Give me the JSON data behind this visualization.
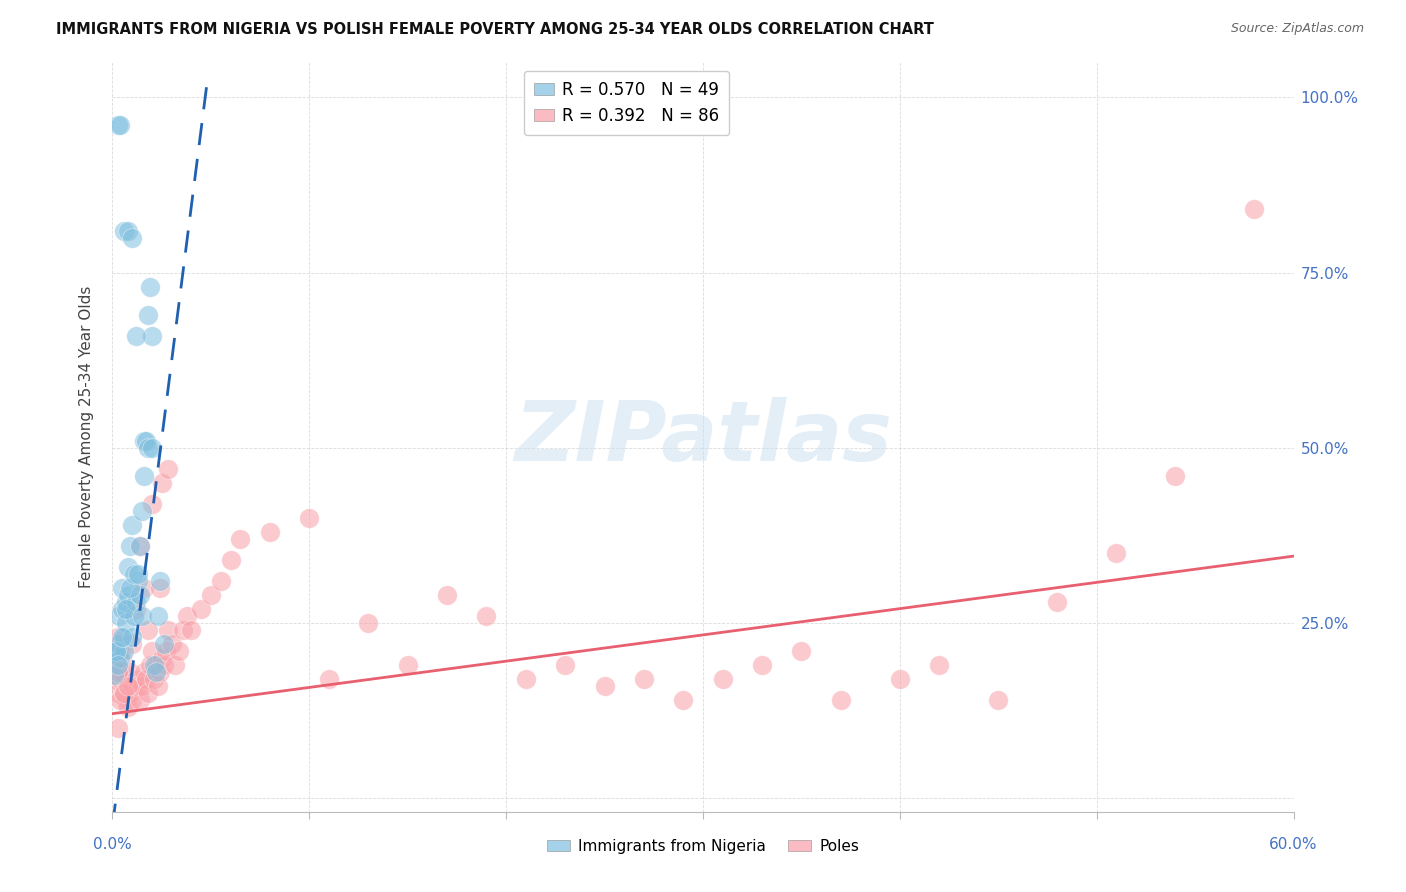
{
  "title": "IMMIGRANTS FROM NIGERIA VS POLISH FEMALE POVERTY AMONG 25-34 YEAR OLDS CORRELATION CHART",
  "source": "Source: ZipAtlas.com",
  "ylabel": "Female Poverty Among 25-34 Year Olds",
  "legend_entry1": "R = 0.570   N = 49",
  "legend_entry2": "R = 0.392   N = 86",
  "legend_label1": "Immigrants from Nigeria",
  "legend_label2": "Poles",
  "color_nigeria": "#7fbfdf",
  "color_poles": "#f9a0a8",
  "trendline_nigeria_color": "#2060b0",
  "trendline_poles_color": "#e86070",
  "watermark": "ZIPatlas",
  "watermark_color": "#c8dff0",
  "nigeria_x": [
    0.001,
    0.002,
    0.003,
    0.0035,
    0.004,
    0.005,
    0.005,
    0.006,
    0.006,
    0.007,
    0.007,
    0.008,
    0.008,
    0.009,
    0.01,
    0.01,
    0.011,
    0.012,
    0.013,
    0.014,
    0.015,
    0.016,
    0.018,
    0.019,
    0.02,
    0.003,
    0.004,
    0.006,
    0.008,
    0.01,
    0.012,
    0.014,
    0.002,
    0.003,
    0.005,
    0.007,
    0.009,
    0.011,
    0.013,
    0.015,
    0.016,
    0.017,
    0.018,
    0.02,
    0.021,
    0.022,
    0.023,
    0.024,
    0.026
  ],
  "nigeria_y": [
    0.175,
    0.21,
    0.22,
    0.26,
    0.2,
    0.27,
    0.3,
    0.21,
    0.23,
    0.25,
    0.28,
    0.29,
    0.33,
    0.36,
    0.39,
    0.23,
    0.26,
    0.28,
    0.31,
    0.36,
    0.41,
    0.46,
    0.69,
    0.73,
    0.66,
    0.96,
    0.96,
    0.81,
    0.81,
    0.8,
    0.66,
    0.29,
    0.21,
    0.19,
    0.23,
    0.27,
    0.3,
    0.32,
    0.32,
    0.26,
    0.51,
    0.51,
    0.5,
    0.5,
    0.19,
    0.18,
    0.26,
    0.31,
    0.22
  ],
  "poles_x": [
    0.001,
    0.002,
    0.002,
    0.003,
    0.003,
    0.004,
    0.004,
    0.005,
    0.005,
    0.006,
    0.006,
    0.007,
    0.007,
    0.008,
    0.008,
    0.009,
    0.009,
    0.01,
    0.01,
    0.011,
    0.012,
    0.013,
    0.014,
    0.015,
    0.016,
    0.017,
    0.018,
    0.019,
    0.02,
    0.021,
    0.022,
    0.023,
    0.024,
    0.025,
    0.026,
    0.027,
    0.028,
    0.03,
    0.032,
    0.034,
    0.036,
    0.038,
    0.04,
    0.045,
    0.05,
    0.055,
    0.06,
    0.065,
    0.08,
    0.1,
    0.11,
    0.13,
    0.15,
    0.17,
    0.19,
    0.21,
    0.23,
    0.25,
    0.27,
    0.29,
    0.31,
    0.33,
    0.35,
    0.37,
    0.4,
    0.42,
    0.45,
    0.48,
    0.51,
    0.54,
    0.003,
    0.003,
    0.004,
    0.006,
    0.008,
    0.01,
    0.012,
    0.014,
    0.016,
    0.018,
    0.02,
    0.024,
    0.003,
    0.025,
    0.028,
    0.58
  ],
  "poles_y": [
    0.17,
    0.2,
    0.22,
    0.15,
    0.19,
    0.21,
    0.17,
    0.18,
    0.2,
    0.15,
    0.17,
    0.14,
    0.17,
    0.17,
    0.13,
    0.15,
    0.18,
    0.14,
    0.16,
    0.16,
    0.17,
    0.16,
    0.14,
    0.16,
    0.18,
    0.17,
    0.15,
    0.19,
    0.21,
    0.17,
    0.19,
    0.16,
    0.18,
    0.2,
    0.19,
    0.21,
    0.24,
    0.22,
    0.19,
    0.21,
    0.24,
    0.26,
    0.24,
    0.27,
    0.29,
    0.31,
    0.34,
    0.37,
    0.38,
    0.4,
    0.17,
    0.25,
    0.19,
    0.29,
    0.26,
    0.17,
    0.19,
    0.16,
    0.17,
    0.14,
    0.17,
    0.19,
    0.21,
    0.14,
    0.17,
    0.19,
    0.14,
    0.28,
    0.35,
    0.46,
    0.23,
    0.18,
    0.14,
    0.15,
    0.16,
    0.22,
    0.27,
    0.36,
    0.3,
    0.24,
    0.42,
    0.3,
    0.1,
    0.45,
    0.47,
    0.84
  ],
  "xlim": [
    0.0,
    0.6
  ],
  "ylim": [
    -0.02,
    1.05
  ],
  "ytick_values": [
    0.0,
    0.25,
    0.5,
    0.75,
    1.0
  ],
  "ytick_labels": [
    "",
    "25.0%",
    "50.0%",
    "75.0%",
    "100.0%"
  ],
  "xtick_values": [
    0.0,
    0.1,
    0.2,
    0.3,
    0.4,
    0.5,
    0.6
  ],
  "nigeria_trend_x": [
    0.0,
    0.048
  ],
  "nigeria_trend_y": [
    -0.04,
    1.02
  ],
  "poles_trend_x": [
    0.0,
    0.6
  ],
  "poles_trend_y": [
    0.12,
    0.345
  ]
}
